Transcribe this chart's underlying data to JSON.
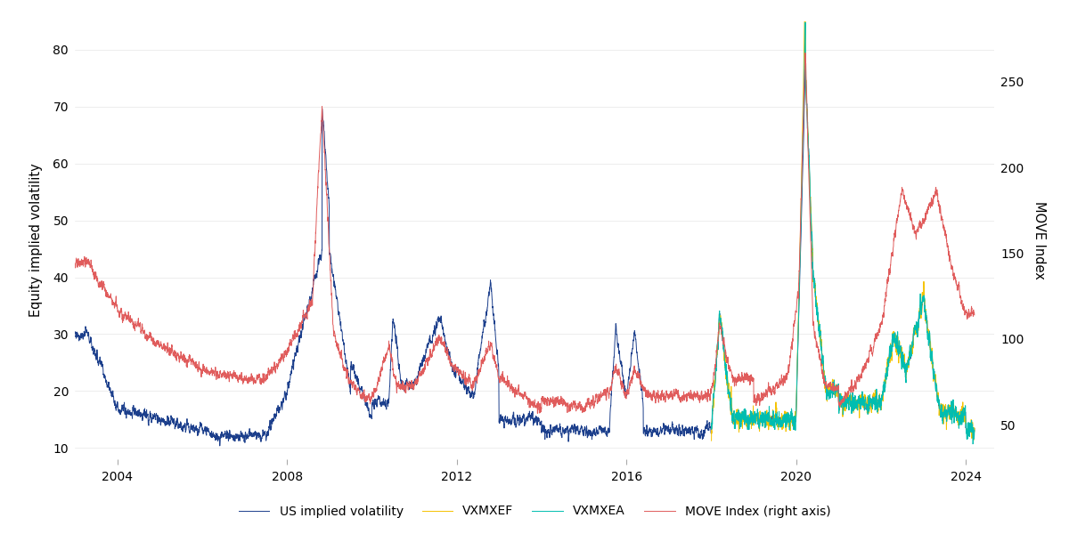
{
  "title": "",
  "ylabel_left": "Equity implied volatility",
  "ylabel_right": "MOVE Index",
  "left_ylim": [
    8,
    85
  ],
  "right_ylim": [
    30,
    285
  ],
  "left_yticks": [
    10,
    20,
    30,
    40,
    50,
    60,
    70,
    80
  ],
  "right_yticks": [
    50,
    100,
    150,
    200,
    250
  ],
  "xtick_years": [
    2004,
    2008,
    2012,
    2016,
    2020,
    2024
  ],
  "colors": {
    "us_vol": "#1c3f8c",
    "vxmxef": "#f5c200",
    "vxmxea": "#00bdb0",
    "move": "#e05c5c"
  },
  "legend_labels": [
    "US implied volatility",
    "VXMXEF",
    "VXMXEA",
    "MOVE Index (right axis)"
  ],
  "background_color": "#ffffff",
  "linewidth": 0.7,
  "start_year": 2003,
  "end_year": 2024.2
}
